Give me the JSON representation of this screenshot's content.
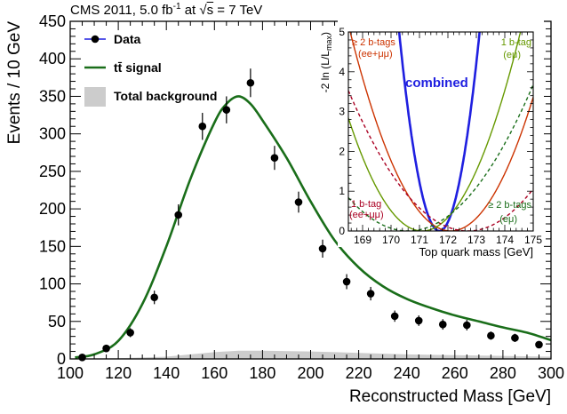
{
  "header": {
    "prefix": "CMS 2011, 5.0 fb",
    "lumi_sup": "-1",
    "at": " at ",
    "sqrt": "√",
    "s": "s",
    "energy": " = 7 TeV"
  },
  "chart_data": [
    {
      "type": "scatter",
      "xlabel": "Reconstructed Mass [GeV]",
      "ylabel": "Events / 10 GeV",
      "xlim": [
        100,
        300
      ],
      "ylim": [
        0,
        450
      ],
      "x_ticks": [
        100,
        120,
        140,
        160,
        180,
        200,
        220,
        240,
        260,
        280,
        300
      ],
      "y_ticks": [
        0,
        50,
        100,
        150,
        200,
        250,
        300,
        350,
        400,
        450
      ],
      "legend_position": "top-left",
      "legend": [
        {
          "label": "Data",
          "style": "marker"
        },
        {
          "label": "tt̄ signal",
          "style": "line"
        },
        {
          "label": "Total background",
          "style": "fill"
        }
      ],
      "colors": {
        "data": "#000000",
        "signal": "#1a6e1a",
        "background": "#cccccc"
      },
      "series": [
        {
          "name": "Data",
          "x": [
            105,
            115,
            125,
            135,
            145,
            155,
            165,
            175,
            185,
            195,
            205,
            215,
            225,
            235,
            245,
            255,
            265,
            275,
            285,
            295
          ],
          "y": [
            2,
            14,
            35,
            82,
            192,
            310,
            332,
            368,
            268,
            209,
            147,
            103,
            87,
            57,
            51,
            46,
            45,
            31,
            28,
            19
          ],
          "err": [
            1.5,
            4,
            6,
            9,
            14,
            18,
            18,
            19,
            16,
            14,
            12,
            10,
            9,
            7.5,
            7,
            7,
            7,
            5.5,
            5.5,
            4.5
          ]
        },
        {
          "name": "tt̄ signal",
          "x": [
            102,
            110,
            120,
            130,
            140,
            150,
            160,
            165,
            170,
            175,
            180,
            190,
            200,
            210,
            220,
            230,
            240,
            250,
            260,
            270,
            280,
            290,
            300
          ],
          "y": [
            2,
            6,
            24,
            73,
            150,
            240,
            315,
            340,
            350,
            340,
            318,
            268,
            210,
            158,
            122,
            97,
            80,
            68,
            58,
            50,
            42,
            35,
            25
          ]
        },
        {
          "name": "Total background",
          "x": [
            100,
            120,
            140,
            150,
            160,
            170,
            180,
            200,
            220,
            240,
            260,
            280,
            300
          ],
          "y": [
            0,
            1,
            3,
            6,
            9,
            11,
            11,
            10,
            8,
            6,
            5,
            4,
            3
          ]
        }
      ]
    },
    {
      "type": "line",
      "xlabel": "Top quark mass [GeV]",
      "ylabel": "-2 ln (L/L",
      "ylabel_sub": "max",
      "ylabel_close": ")",
      "xlim": [
        168.5,
        175
      ],
      "ylim": [
        0,
        5
      ],
      "x_ticks": [
        169,
        170,
        171,
        172,
        173,
        174,
        175
      ],
      "y_ticks": [
        0,
        1,
        2,
        3,
        4,
        5
      ],
      "annotations": {
        "ge2_ll_1": "≥ 2 b-tags",
        "ge2_ll_2": "(ee+μμ)",
        "one_emu_1": "1 b-tag",
        "one_emu_2": "(eμ)",
        "combined": "combined",
        "one_ll_1": "1 b-tag",
        "one_ll_2": "(ee+μμ)",
        "ge2_emu_1": "≥ 2 b-tags",
        "ge2_emu_2": "(eμ)"
      },
      "series": [
        {
          "name": "combined",
          "min": 171.7,
          "curvature": 2.5,
          "color": "#1f1fe0",
          "style": "solid",
          "width": 2.6
        },
        {
          "name": "≥ 2 b-tags (ee+μμ)",
          "min": 172.1,
          "curvature": 0.4,
          "color": "#cc3300",
          "style": "solid",
          "width": 1.4
        },
        {
          "name": "≥ 2 b-tags (eμ)",
          "min": 171.1,
          "curvature": 0.42,
          "color": "#669900",
          "style": "solid",
          "width": 1.4
        },
        {
          "name": "1 b-tag (ee+μμ)",
          "min": 172.7,
          "curvature": 0.2,
          "color": "#aa0022",
          "style": "dashed",
          "width": 1.4
        },
        {
          "name": "1 b-tag (eμ)",
          "min": 170.6,
          "curvature": 0.19,
          "color": "#1a6e1a",
          "style": "dashed",
          "width": 1.4
        }
      ]
    }
  ]
}
